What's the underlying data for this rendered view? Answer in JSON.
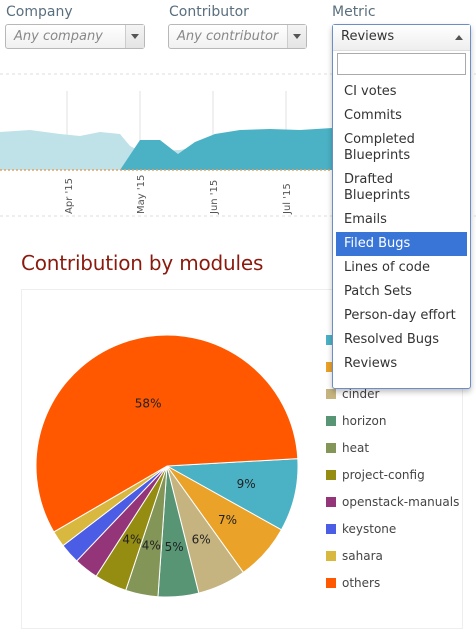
{
  "filters": {
    "company": {
      "label": "Company",
      "value": "Any company"
    },
    "contributor": {
      "label": "Contributor",
      "value": "Any contributor"
    },
    "metric": {
      "label": "Metric",
      "value": "Reviews",
      "search_value": "",
      "options": [
        "CI votes",
        "Commits",
        "Completed Blueprints",
        "Drafted Blueprints",
        "Emails",
        "Filed Bugs",
        "Lines of code",
        "Patch Sets",
        "Person-day effort",
        "Resolved Bugs",
        "Reviews"
      ],
      "highlighted": "Filed Bugs"
    }
  },
  "timeline": {
    "months": [
      "Apr '15",
      "May '15",
      "Jun '15",
      "Jul '15"
    ]
  },
  "section": {
    "title": "Contribution by modules"
  },
  "chart_data": {
    "type": "pie",
    "title": "Contribution by modules",
    "legend_position": "right",
    "slices": [
      {
        "name": "",
        "value": 9,
        "label": "9%",
        "color": "#4bb2c5"
      },
      {
        "name": "",
        "value": 7,
        "label": "7%",
        "color": "#eaa228"
      },
      {
        "name": "cinder",
        "value": 6,
        "label": "6%",
        "color": "#c5b47f"
      },
      {
        "name": "horizon",
        "value": 5,
        "label": "5%",
        "color": "#579575"
      },
      {
        "name": "heat",
        "value": 4,
        "label": "4%",
        "color": "#839557"
      },
      {
        "name": "project-config",
        "value": 4,
        "label": "4%",
        "color": "#958c12"
      },
      {
        "name": "openstack-manuals",
        "value": 3,
        "label": "",
        "color": "#953579"
      },
      {
        "name": "keystone",
        "value": 2.5,
        "label": "",
        "color": "#4b5de4"
      },
      {
        "name": "sahara",
        "value": 2,
        "label": "",
        "color": "#d8b83f"
      },
      {
        "name": "others",
        "value": 57.5,
        "label": "58%",
        "color": "#ff5800"
      }
    ]
  }
}
